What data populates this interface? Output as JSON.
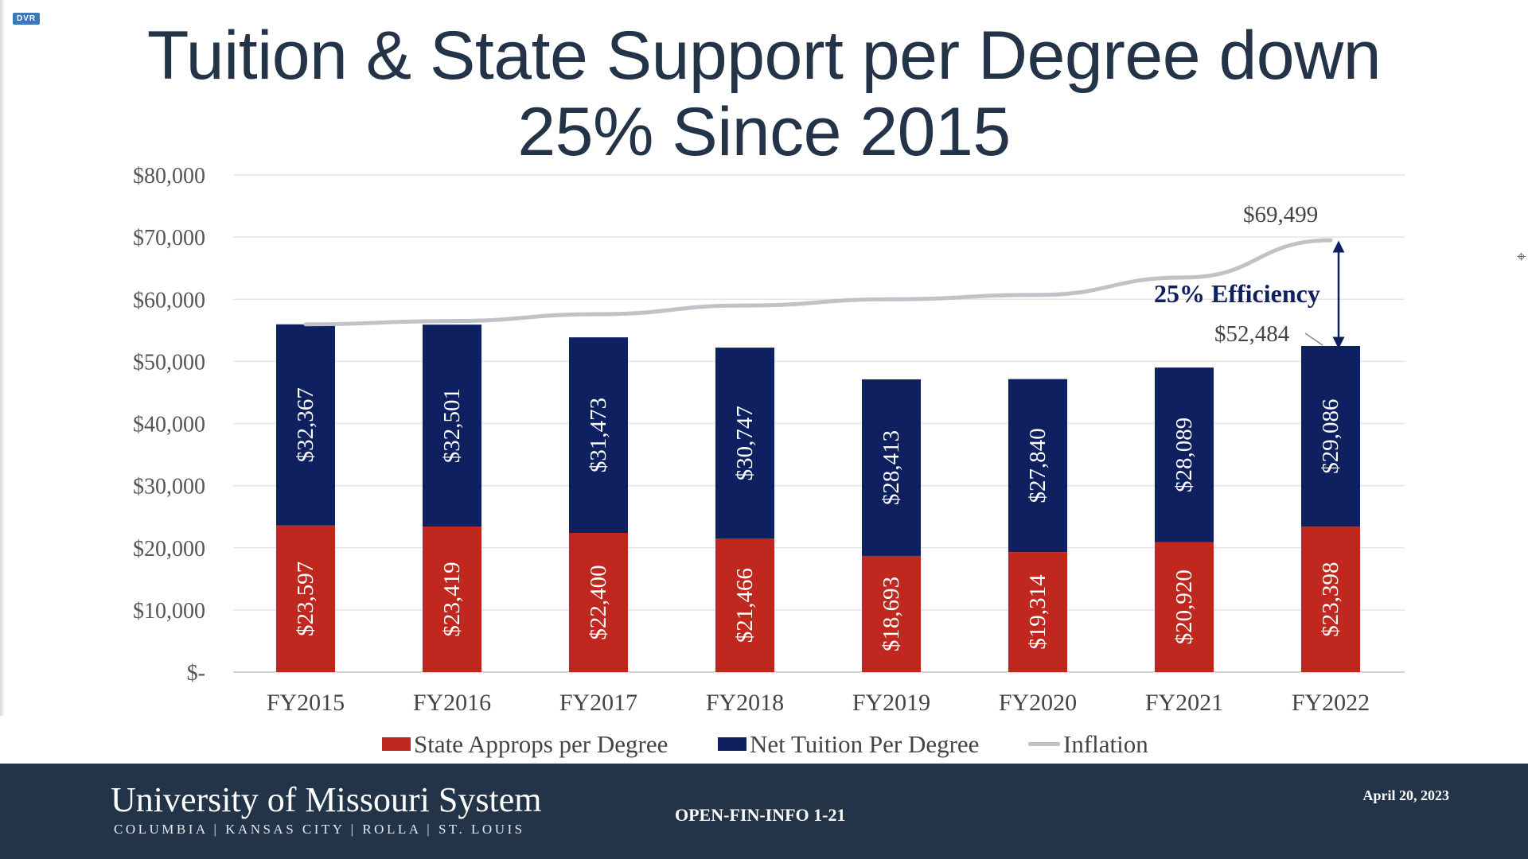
{
  "title": {
    "line1": "Tuition & State Support per Degree down",
    "line2": "25% Since 2015"
  },
  "badge": {
    "label": "DVR"
  },
  "cursor": {
    "icon": "mouse-cursor-icon"
  },
  "colors": {
    "state": "#c0271e",
    "tuition": "#0f2060",
    "inflation": "#bfc2c8",
    "annotation": "#0f2060",
    "footer": "#233449",
    "title": "#243448"
  },
  "chart_data": {
    "type": "bar",
    "stacked": true,
    "categories": [
      "FY2015",
      "FY2016",
      "FY2017",
      "FY2018",
      "FY2019",
      "FY2020",
      "FY2021",
      "FY2022"
    ],
    "series": [
      {
        "name": "State Approps per Degree",
        "values": [
          23597,
          23419,
          22400,
          21466,
          18693,
          19314,
          20920,
          23398
        ],
        "labels": [
          "$23,597",
          "$23,419",
          "$22,400",
          "$21,466",
          "$18,693",
          "$19,314",
          "$20,920",
          "$23,398"
        ]
      },
      {
        "name": "Net Tuition Per Degree",
        "values": [
          32367,
          32501,
          31473,
          30747,
          28413,
          27840,
          28089,
          29086
        ],
        "labels": [
          "$32,367",
          "$32,501",
          "$31,473",
          "$30,747",
          "$28,413",
          "$27,840",
          "$28,089",
          "$29,086"
        ]
      }
    ],
    "line_series": {
      "name": "Inflation",
      "values": [
        55964,
        56500,
        57600,
        59000,
        60000,
        60700,
        63500,
        69499
      ]
    },
    "y_axis": {
      "min": 0,
      "max": 80000,
      "step": 10000,
      "tick_labels": [
        "$-",
        "$10,000",
        "$20,000",
        "$30,000",
        "$40,000",
        "$50,000",
        "$60,000",
        "$70,000",
        "$80,000"
      ]
    },
    "grid": true,
    "legend_position": "bottom",
    "annotations": {
      "inflation_end_label": "$69,499",
      "total_end_label": "$52,484",
      "total_end_value": 52484,
      "inflation_end_value": 69499,
      "efficiency_label": "25% Efficiency"
    }
  },
  "legend": {
    "items": [
      {
        "label": "State Approps per Degree"
      },
      {
        "label": "Net Tuition Per Degree"
      },
      {
        "label": "Inflation"
      }
    ]
  },
  "footer": {
    "org_name": "University of Missouri System",
    "campuses": "COLUMBIA | KANSAS CITY | ROLLA | ST. LOUIS",
    "doc_code": "OPEN-FIN-INFO 1-21",
    "date": "April 20, 2023"
  }
}
